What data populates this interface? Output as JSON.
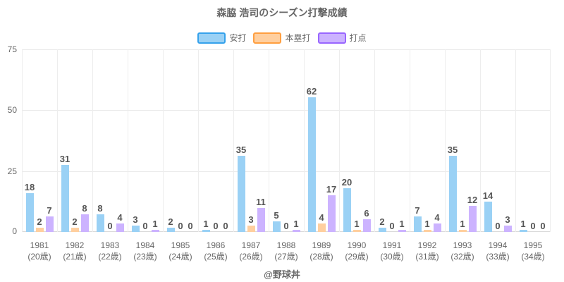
{
  "footer": {
    "text": "@野球丼"
  },
  "chart_data": {
    "type": "bar",
    "title": "森脇 浩司のシーズン打撃成績",
    "categories": [
      "1981",
      "1982",
      "1983",
      "1984",
      "1985",
      "1986",
      "1987",
      "1988",
      "1989",
      "1990",
      "1991",
      "1992",
      "1993",
      "1994",
      "1995"
    ],
    "category_sublabels": [
      "(20歳)",
      "(21歳)",
      "(22歳)",
      "(23歳)",
      "(24歳)",
      "(25歳)",
      "(26歳)",
      "(27歳)",
      "(28歳)",
      "(29歳)",
      "(30歳)",
      "(31歳)",
      "(32歳)",
      "(33歳)",
      "(34歳)"
    ],
    "series": [
      {
        "key": "hits",
        "name": "安打",
        "fill": "#9AD1F5",
        "border": "#36A2EB",
        "values": [
          18,
          31,
          8,
          3,
          2,
          1,
          35,
          5,
          62,
          20,
          2,
          7,
          35,
          14,
          1
        ]
      },
      {
        "key": "home-runs",
        "name": "本塁打",
        "fill": "#FFCF9F",
        "border": "#FF9F40",
        "values": [
          2,
          2,
          0,
          0,
          0,
          0,
          3,
          0,
          4,
          1,
          0,
          1,
          1,
          0,
          0
        ]
      },
      {
        "key": "rbi",
        "name": "打点",
        "fill": "#CCB3FF",
        "border": "#9966FF",
        "values": [
          7,
          8,
          4,
          1,
          0,
          0,
          11,
          1,
          17,
          6,
          1,
          4,
          12,
          3,
          0
        ]
      }
    ],
    "ylim": [
      0,
      75
    ],
    "yticks": [
      0,
      25,
      50,
      75
    ],
    "grid": true,
    "legend_position": "top",
    "value_labels": true
  }
}
